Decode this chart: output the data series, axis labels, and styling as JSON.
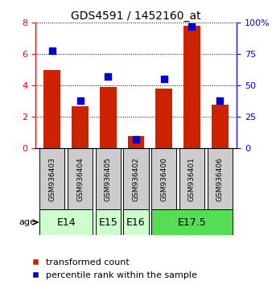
{
  "title": "GDS4591 / 1452160_at",
  "samples": [
    "GSM936403",
    "GSM936404",
    "GSM936405",
    "GSM936402",
    "GSM936400",
    "GSM936401",
    "GSM936406"
  ],
  "red_values": [
    5.0,
    2.7,
    3.9,
    0.8,
    3.8,
    7.8,
    2.8
  ],
  "blue_values": [
    78,
    38,
    57,
    7,
    55,
    97,
    38
  ],
  "age_groups": [
    {
      "label": "E14",
      "span": [
        0,
        2
      ],
      "color": "#ccffcc"
    },
    {
      "label": "E15",
      "span": [
        2,
        3
      ],
      "color": "#ccffcc"
    },
    {
      "label": "E16",
      "span": [
        3,
        4
      ],
      "color": "#ccffcc"
    },
    {
      "label": "E17.5",
      "span": [
        4,
        7
      ],
      "color": "#55dd55"
    }
  ],
  "left_ylim": [
    0,
    8
  ],
  "right_ylim": [
    0,
    100
  ],
  "left_yticks": [
    0,
    2,
    4,
    6,
    8
  ],
  "right_yticks": [
    0,
    25,
    50,
    75,
    100
  ],
  "right_yticklabels": [
    "0",
    "25",
    "50",
    "75",
    "100%"
  ],
  "bar_color": "#cc2200",
  "dot_color": "#0000cc",
  "sample_bg_color": "#cccccc",
  "title_fontsize": 10,
  "tick_fontsize": 8,
  "sample_fontsize": 6.5,
  "age_fontsize": 9,
  "legend_fontsize": 8
}
